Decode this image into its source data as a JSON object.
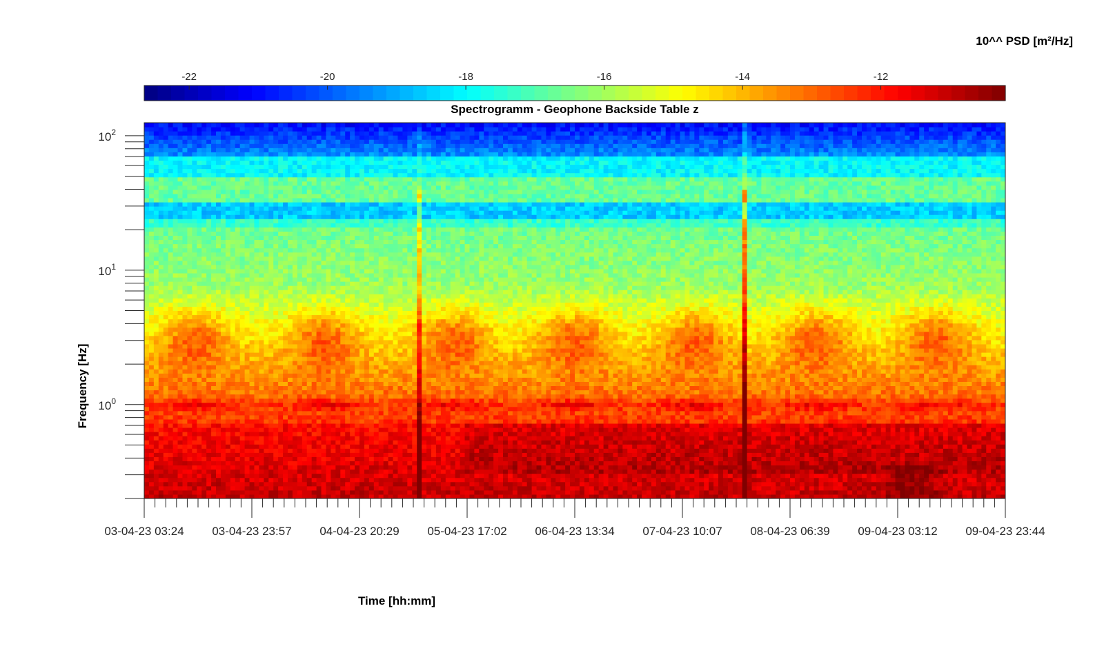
{
  "chart_data": {
    "type": "heatmap",
    "title": "Spectrogramm - Geophone Backside Table z",
    "xlabel": "Time [hh:mm]",
    "ylabel": "Frequency [Hz]",
    "colorbar_label": "10^^ PSD [m²/Hz]",
    "colormap": "jet",
    "x_ticks": [
      "03-04-23 03:24",
      "03-04-23 23:57",
      "04-04-23 20:29",
      "05-04-23 17:02",
      "06-04-23 13:34",
      "07-04-23 10:07",
      "08-04-23 06:39",
      "09-04-23 03:12",
      "09-04-23 23:44"
    ],
    "x_range": [
      "03-04-23 03:24",
      "09-04-23 23:44"
    ],
    "y_scale": "log",
    "y_range": [
      0.2,
      125
    ],
    "y_ticks": [
      {
        "base": "10",
        "exp": "0",
        "value": 1
      },
      {
        "base": "10",
        "exp": "1",
        "value": 10
      },
      {
        "base": "10",
        "exp": "2",
        "value": 100
      }
    ],
    "color_range": [
      -22.65,
      -10.2
    ],
    "colorbar_ticks": [
      "-22",
      "-20",
      "-18",
      "-16",
      "-14",
      "-12"
    ],
    "colorbar_tick_values": [
      -22,
      -20,
      -18,
      -16,
      -14,
      -12
    ],
    "grid": false,
    "features": {
      "day_activity_peaks_fraction_of_time": [
        0.06,
        0.21,
        0.36,
        0.5,
        0.64,
        0.78,
        0.92
      ],
      "day_activity_band_hz": [
        1.5,
        6
      ],
      "transient_events_fraction_of_time": [
        0.319,
        0.699
      ],
      "low_frequency_band_hz": [
        0.2,
        0.7
      ],
      "narrowband_lines_hz": [
        1.0,
        45,
        25,
        14
      ]
    }
  }
}
